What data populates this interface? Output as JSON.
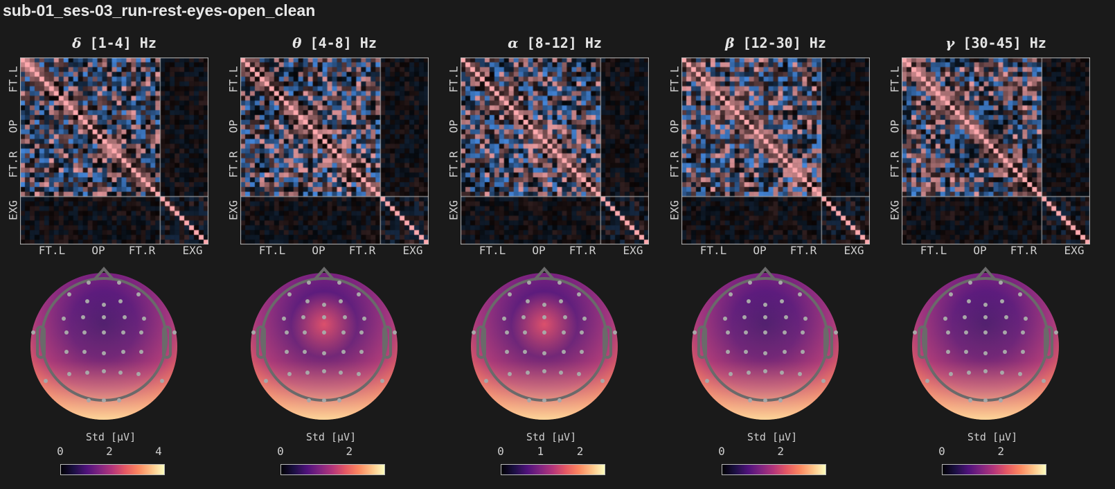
{
  "figure_title": "sub-01_ses-03_run-rest-eyes-open_clean",
  "chart_data": [
    {
      "type": "heatmap",
      "title_symbol": "δ",
      "title_range": "[1-4] Hz",
      "yticklabels": [
        "FT.L",
        "OP",
        "FT.R",
        "EXG"
      ],
      "xticklabels": [
        "FT.L",
        "OP",
        "FT.R",
        "EXG"
      ],
      "topomap_colorbar": {
        "label": "Std [μV]",
        "ticks": [
          "0",
          "2",
          "4"
        ],
        "range": [
          0,
          4.2
        ],
        "cmap": "magma"
      }
    },
    {
      "type": "heatmap",
      "title_symbol": "θ",
      "title_range": "[4-8] Hz",
      "yticklabels": [
        "FT.L",
        "OP",
        "FT.R",
        "EXG"
      ],
      "xticklabels": [
        "FT.L",
        "OP",
        "FT.R",
        "EXG"
      ],
      "topomap_colorbar": {
        "label": "Std [μV]",
        "ticks": [
          "0",
          "2"
        ],
        "range": [
          0,
          3.0
        ],
        "cmap": "magma"
      }
    },
    {
      "type": "heatmap",
      "title_symbol": "α",
      "title_range": "[8-12] Hz",
      "yticklabels": [
        "FT.L",
        "OP",
        "FT.R",
        "EXG"
      ],
      "xticklabels": [
        "FT.L",
        "OP",
        "FT.R",
        "EXG"
      ],
      "topomap_colorbar": {
        "label": "Std [μV]",
        "ticks": [
          "0",
          "1",
          "2"
        ],
        "range": [
          0,
          2.6
        ],
        "cmap": "magma"
      }
    },
    {
      "type": "heatmap",
      "title_symbol": "β",
      "title_range": "[12-30] Hz",
      "yticklabels": [
        "FT.L",
        "OP",
        "FT.R",
        "EXG"
      ],
      "xticklabels": [
        "FT.L",
        "OP",
        "FT.R",
        "EXG"
      ],
      "topomap_colorbar": {
        "label": "Std [μV]",
        "ticks": [
          "0",
          "2"
        ],
        "range": [
          0,
          3.5
        ],
        "cmap": "magma"
      }
    },
    {
      "type": "heatmap",
      "title_symbol": "γ",
      "title_range": "[30-45] Hz",
      "yticklabels": [
        "FT.L",
        "OP",
        "FT.R",
        "EXG"
      ],
      "xticklabels": [
        "FT.L",
        "OP",
        "FT.R",
        "EXG"
      ],
      "topomap_colorbar": {
        "label": "Std [μV]",
        "ticks": [
          "0",
          "2"
        ],
        "range": [
          0,
          3.5
        ],
        "cmap": "magma"
      }
    }
  ],
  "colors": {
    "background": "#1a1a1a",
    "positive": "#ff9aa2",
    "negative": "#4a90e2",
    "grid": "#bbbbbb"
  }
}
